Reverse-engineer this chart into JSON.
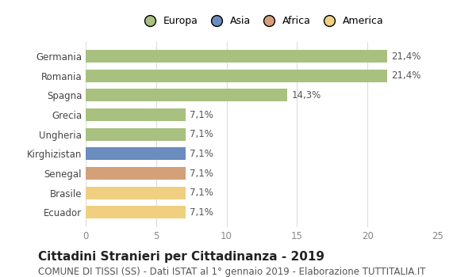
{
  "categories": [
    "Germania",
    "Romania",
    "Spagna",
    "Grecia",
    "Ungheria",
    "Kirghizistan",
    "Senegal",
    "Brasile",
    "Ecuador"
  ],
  "values": [
    21.4,
    21.4,
    14.3,
    7.1,
    7.1,
    7.1,
    7.1,
    7.1,
    7.1
  ],
  "labels": [
    "21,4%",
    "21,4%",
    "14,3%",
    "7,1%",
    "7,1%",
    "7,1%",
    "7,1%",
    "7,1%",
    "7,1%"
  ],
  "bar_colors": [
    "#a8c080",
    "#a8c080",
    "#a8c080",
    "#a8c080",
    "#a8c080",
    "#6b8cbf",
    "#d4a07a",
    "#f0d080",
    "#f0d080"
  ],
  "legend_labels": [
    "Europa",
    "Asia",
    "Africa",
    "America"
  ],
  "legend_colors": [
    "#a8c080",
    "#6b8cbf",
    "#d4a07a",
    "#f0d080"
  ],
  "xlim": [
    0,
    25
  ],
  "xticks": [
    0,
    5,
    10,
    15,
    20,
    25
  ],
  "title": "Cittadini Stranieri per Cittadinanza - 2019",
  "subtitle": "COMUNE DI TISSI (SS) - Dati ISTAT al 1° gennaio 2019 - Elaborazione TUTTITALIA.IT",
  "title_fontsize": 11,
  "subtitle_fontsize": 8.5,
  "label_fontsize": 8.5,
  "tick_fontsize": 8.5,
  "legend_fontsize": 9,
  "background_color": "#ffffff",
  "grid_color": "#dddddd"
}
